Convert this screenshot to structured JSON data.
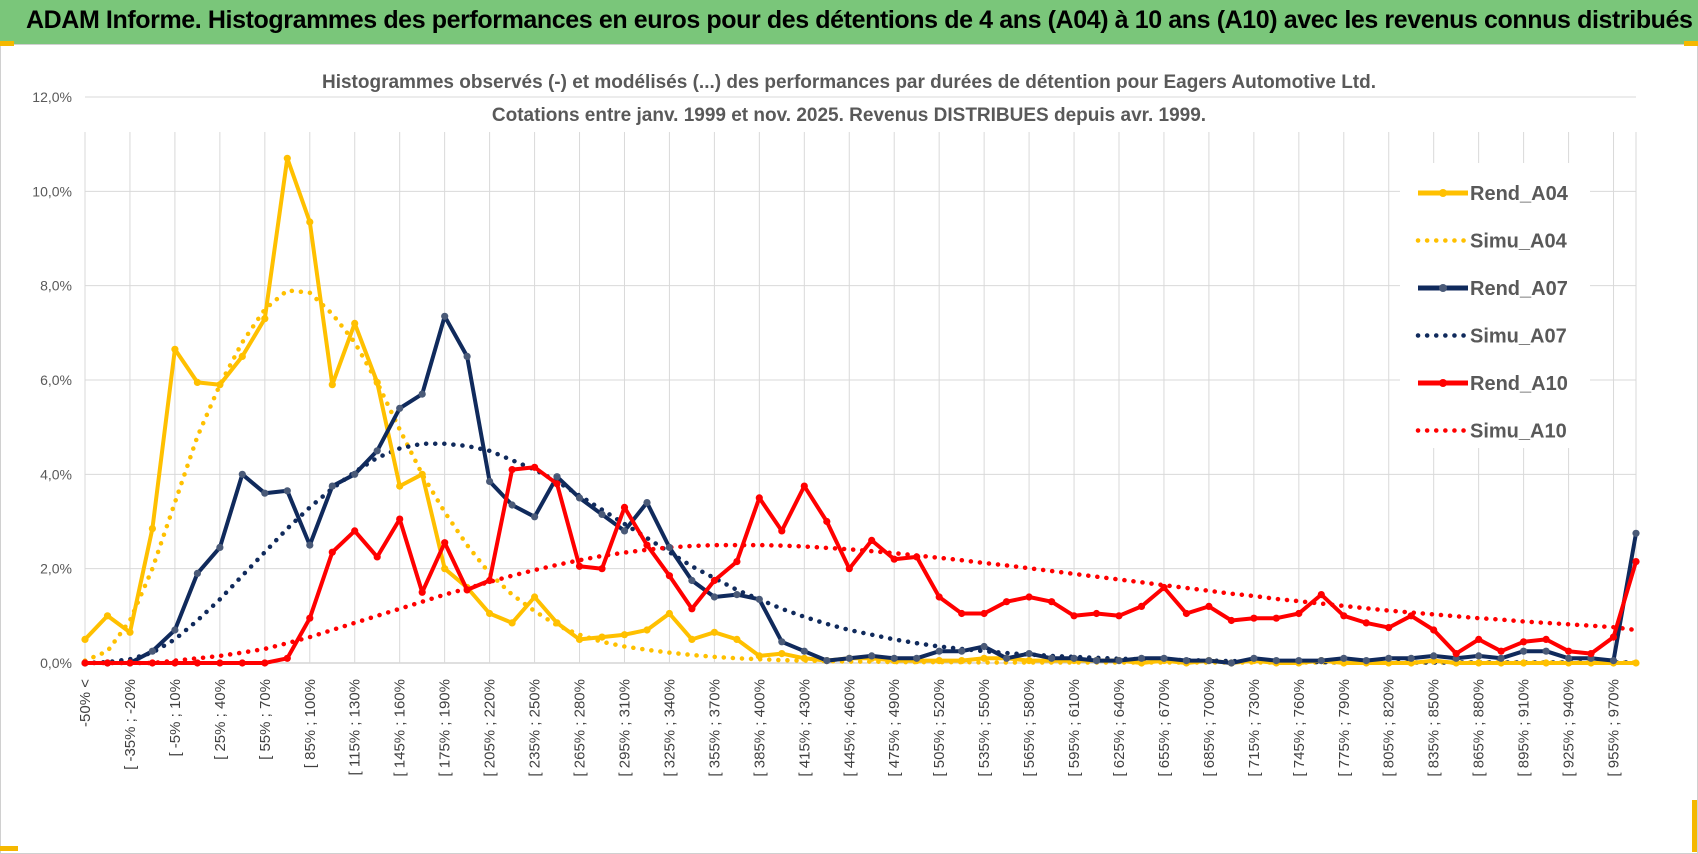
{
  "header": {
    "title": "ADAM Informe. Histogrammes des performances en euros pour des détentions de 4 ans (A04) à 10 ans (A10) avec les revenus connus distribués"
  },
  "colors": {
    "banner": "#7ac67a",
    "A04": "#ffc000",
    "A07": "#102a5c",
    "A10": "#ff0000",
    "grid": "#d9d9d9"
  },
  "chart_data": {
    "type": "line",
    "title_line1": "Histogrammes observés (-) et modélisés (...) des performances par durées de détention pour Eagers Automotive Ltd.",
    "title_line2": "Cotations entre janv. 1999 et nov. 2025. Revenus DISTRIBUES depuis avr. 1999.",
    "ylim": [
      0,
      12
    ],
    "yticks": [
      "0,0%",
      "2,0%",
      "4,0%",
      "6,0%",
      "8,0%",
      "10,0%",
      "12,0%"
    ],
    "categories_labeled": [
      "-50% <",
      "[ -35% ; -20%",
      "[ -5% ; 10%",
      "[ 25% ; 40%",
      "[ 55% ; 70%",
      "[ 85% ; 100%",
      "[ 115% ; 130%",
      "[ 145% ; 160%",
      "[ 175% ; 190%",
      "[ 205% ; 220%",
      "[ 235% ; 250%",
      "[ 265% ; 280%",
      "[ 295% ; 310%",
      "[ 325% ; 340%",
      "[ 355% ; 370%",
      "[ 385% ; 400%",
      "[ 415% ; 430%",
      "[ 445% ; 460%",
      "[ 475% ; 490%",
      "[ 505% ; 520%",
      "[ 535% ; 550%",
      "[ 565% ; 580%",
      "[ 595% ; 610%",
      "[ 625% ; 640%",
      "[ 655% ; 670%",
      "[ 685% ; 700%",
      "[ 715% ; 730%",
      "[ 745% ; 760%",
      "[ 775% ; 790%",
      "[ 805% ; 820%",
      "[ 835% ; 850%",
      "[ 865% ; 880%",
      "[ 895% ; 910%",
      "[ 925% ; 940%",
      "[ 955% ; 970%"
    ],
    "n_points": 70,
    "series": [
      {
        "name": "Rend_A04",
        "kind": "observed",
        "color": "#ffc000",
        "values": [
          0.5,
          1.0,
          0.65,
          2.85,
          6.65,
          5.95,
          5.9,
          6.5,
          7.3,
          10.7,
          9.35,
          5.9,
          7.2,
          5.95,
          3.75,
          4.0,
          2.0,
          1.6,
          1.05,
          0.85,
          1.4,
          0.85,
          0.5,
          0.55,
          0.6,
          0.7,
          1.05,
          0.5,
          0.65,
          0.5,
          0.15,
          0.2,
          0.1,
          0.05,
          0.1,
          0.1,
          0.05,
          0.05,
          0.05,
          0.05,
          0.1,
          0.1,
          0.05,
          0.05,
          0.05,
          0.05,
          0.05,
          0.0,
          0.05,
          0.0,
          0.05,
          0.0,
          0.05,
          0.0,
          0.0,
          0.05,
          0.0,
          0.0,
          0.0,
          0.0,
          0.05,
          0.0,
          0.0,
          0.0,
          0.0,
          0.0,
          0.0,
          0.0,
          0.0,
          0.0
        ]
      },
      {
        "name": "Simu_A04",
        "kind": "modeled",
        "color": "#ffc000",
        "values": [
          0.05,
          0.25,
          0.9,
          2.0,
          3.4,
          4.8,
          5.9,
          6.8,
          7.5,
          7.9,
          7.85,
          7.4,
          6.8,
          5.95,
          4.95,
          4.0,
          3.2,
          2.5,
          1.9,
          1.45,
          1.1,
          0.8,
          0.6,
          0.45,
          0.35,
          0.28,
          0.22,
          0.17,
          0.13,
          0.1,
          0.08,
          0.06,
          0.05,
          0.04,
          0.03,
          0.03,
          0.02,
          0.02,
          0.02,
          0.02,
          0.01,
          0.01,
          0.01,
          0.01,
          0.01,
          0.01,
          0.01,
          0.01,
          0.01,
          0.01,
          0.01,
          0.01,
          0.01,
          0.01,
          0.01,
          0.01,
          0.01,
          0.01,
          0.01,
          0.01,
          0.01,
          0.01,
          0.01,
          0.01,
          0.01,
          0.01,
          0.01,
          0.01,
          0.01,
          0.01
        ]
      },
      {
        "name": "Rend_A07",
        "kind": "observed",
        "color": "#102a5c",
        "values": [
          0.0,
          0.0,
          0.0,
          0.25,
          0.7,
          1.9,
          2.45,
          4.0,
          3.6,
          3.65,
          2.5,
          3.75,
          4.0,
          4.5,
          5.4,
          5.7,
          7.35,
          6.5,
          3.85,
          3.35,
          3.1,
          3.95,
          3.5,
          3.15,
          2.8,
          3.4,
          2.45,
          1.75,
          1.4,
          1.45,
          1.35,
          0.45,
          0.25,
          0.05,
          0.1,
          0.15,
          0.1,
          0.1,
          0.25,
          0.25,
          0.35,
          0.1,
          0.2,
          0.1,
          0.1,
          0.05,
          0.05,
          0.1,
          0.1,
          0.05,
          0.05,
          0.0,
          0.1,
          0.05,
          0.05,
          0.05,
          0.1,
          0.05,
          0.1,
          0.1,
          0.15,
          0.1,
          0.15,
          0.1,
          0.25,
          0.25,
          0.1,
          0.1,
          0.05,
          2.75
        ]
      },
      {
        "name": "Simu_A07",
        "kind": "modeled",
        "color": "#102a5c",
        "values": [
          0.0,
          0.02,
          0.08,
          0.22,
          0.5,
          0.9,
          1.35,
          1.85,
          2.35,
          2.85,
          3.3,
          3.7,
          4.05,
          4.35,
          4.55,
          4.65,
          4.65,
          4.6,
          4.5,
          4.3,
          4.1,
          3.85,
          3.55,
          3.25,
          2.95,
          2.65,
          2.35,
          2.05,
          1.8,
          1.55,
          1.35,
          1.15,
          0.98,
          0.83,
          0.7,
          0.6,
          0.5,
          0.42,
          0.35,
          0.3,
          0.25,
          0.21,
          0.18,
          0.15,
          0.13,
          0.11,
          0.09,
          0.08,
          0.07,
          0.06,
          0.05,
          0.04,
          0.04,
          0.03,
          0.03,
          0.02,
          0.02,
          0.02,
          0.02,
          0.01,
          0.01,
          0.01,
          0.01,
          0.01,
          0.01,
          0.01,
          0.01,
          0.01,
          0.01,
          0.01
        ]
      },
      {
        "name": "Rend_A10",
        "kind": "observed",
        "color": "#ff0000",
        "values": [
          0.0,
          0.0,
          0.0,
          0.0,
          0.0,
          0.0,
          0.0,
          0.0,
          0.0,
          0.1,
          0.95,
          2.35,
          2.8,
          2.25,
          3.05,
          1.5,
          2.55,
          1.55,
          1.75,
          4.1,
          4.15,
          3.8,
          2.05,
          2.0,
          3.3,
          2.5,
          1.85,
          1.15,
          1.75,
          2.15,
          3.5,
          2.8,
          3.75,
          3.0,
          2.0,
          2.6,
          2.2,
          2.25,
          1.4,
          1.05,
          1.05,
          1.3,
          1.4,
          1.3,
          1.0,
          1.05,
          1.0,
          1.2,
          1.6,
          1.05,
          1.2,
          0.9,
          0.95,
          0.95,
          1.05,
          1.45,
          1.0,
          0.85,
          0.75,
          1.0,
          0.7,
          0.2,
          0.5,
          0.25,
          0.45,
          0.5,
          0.25,
          0.2,
          0.55,
          2.15
        ]
      },
      {
        "name": "Simu_A10",
        "kind": "modeled",
        "color": "#ff0000",
        "values": [
          0.0,
          0.0,
          0.0,
          0.0,
          0.05,
          0.1,
          0.15,
          0.22,
          0.3,
          0.42,
          0.55,
          0.7,
          0.85,
          1.0,
          1.15,
          1.3,
          1.45,
          1.58,
          1.72,
          1.85,
          1.97,
          2.08,
          2.18,
          2.27,
          2.34,
          2.4,
          2.45,
          2.48,
          2.5,
          2.5,
          2.5,
          2.49,
          2.47,
          2.44,
          2.41,
          2.37,
          2.33,
          2.28,
          2.23,
          2.18,
          2.12,
          2.07,
          2.01,
          1.95,
          1.89,
          1.83,
          1.77,
          1.71,
          1.65,
          1.59,
          1.53,
          1.47,
          1.42,
          1.36,
          1.31,
          1.26,
          1.21,
          1.16,
          1.11,
          1.07,
          1.03,
          0.99,
          0.95,
          0.92,
          0.88,
          0.85,
          0.82,
          0.79,
          0.76,
          0.7
        ]
      }
    ],
    "legend": [
      "Rend_A04",
      "Simu_A04",
      "Rend_A07",
      "Simu_A07",
      "Rend_A10",
      "Simu_A10"
    ],
    "legend_position": "right"
  }
}
